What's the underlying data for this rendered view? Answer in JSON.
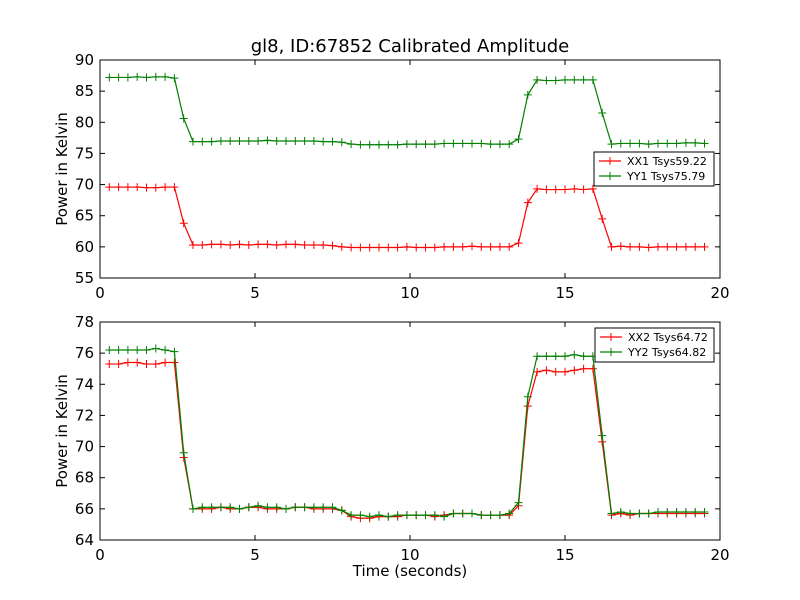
{
  "title": "gl8, ID:67852 Calibrated Amplitude",
  "chart_data": [
    {
      "type": "line",
      "title": "gl8, ID:67852 Calibrated Amplitude",
      "xlabel": "",
      "ylabel": "Power in Kelvin",
      "xlim": [
        0,
        20
      ],
      "ylim": [
        55,
        90
      ],
      "xticks": [
        0,
        5,
        10,
        15,
        20
      ],
      "yticks": [
        55,
        60,
        65,
        70,
        75,
        80,
        85,
        90
      ],
      "grid": false,
      "legend": "right",
      "x": [
        0.3,
        0.6,
        0.9,
        1.2,
        1.5,
        1.8,
        2.1,
        2.4,
        2.7,
        3.0,
        3.3,
        3.6,
        3.9,
        4.2,
        4.5,
        4.8,
        5.1,
        5.4,
        5.7,
        6.0,
        6.3,
        6.6,
        6.9,
        7.2,
        7.5,
        7.8,
        8.1,
        8.4,
        8.7,
        9.0,
        9.3,
        9.6,
        9.9,
        10.2,
        10.5,
        10.8,
        11.1,
        11.4,
        11.7,
        12.0,
        12.3,
        12.6,
        12.9,
        13.2,
        13.5,
        13.8,
        14.1,
        14.4,
        14.7,
        15.0,
        15.3,
        15.6,
        15.9,
        16.2,
        16.5,
        16.8,
        17.1,
        17.4,
        17.7,
        18.0,
        18.3,
        18.6,
        18.9,
        19.2,
        19.5
      ],
      "series": [
        {
          "name": "XX1 Tsys59.22",
          "color": "#ff0000",
          "values": [
            69.6,
            69.6,
            69.6,
            69.6,
            69.5,
            69.5,
            69.6,
            69.6,
            63.8,
            60.3,
            60.3,
            60.4,
            60.4,
            60.3,
            60.4,
            60.3,
            60.4,
            60.4,
            60.3,
            60.4,
            60.4,
            60.3,
            60.3,
            60.3,
            60.2,
            60.0,
            59.9,
            59.9,
            59.9,
            59.9,
            59.9,
            59.9,
            60.0,
            59.9,
            59.9,
            59.9,
            60.0,
            60.0,
            60.0,
            60.1,
            60.0,
            60.0,
            60.0,
            60.0,
            60.6,
            67.1,
            69.3,
            69.2,
            69.2,
            69.2,
            69.3,
            69.2,
            69.3,
            64.5,
            60.0,
            60.1,
            60.0,
            60.0,
            59.9,
            60.0,
            60.0,
            60.0,
            60.0,
            60.0,
            60.0
          ]
        },
        {
          "name": "YY1 Tsys75.79",
          "color": "#008000",
          "values": [
            87.2,
            87.2,
            87.2,
            87.3,
            87.2,
            87.3,
            87.3,
            87.1,
            80.6,
            76.9,
            76.9,
            76.9,
            77.0,
            77.0,
            77.0,
            77.0,
            77.0,
            77.1,
            77.0,
            77.0,
            77.0,
            77.0,
            77.0,
            76.9,
            76.9,
            76.8,
            76.5,
            76.4,
            76.4,
            76.4,
            76.4,
            76.4,
            76.5,
            76.5,
            76.5,
            76.5,
            76.6,
            76.6,
            76.6,
            76.6,
            76.6,
            76.5,
            76.5,
            76.5,
            77.3,
            84.4,
            86.8,
            86.7,
            86.7,
            86.8,
            86.8,
            86.8,
            86.8,
            81.5,
            76.5,
            76.6,
            76.6,
            76.6,
            76.5,
            76.6,
            76.6,
            76.6,
            76.7,
            76.7,
            76.6
          ]
        }
      ]
    },
    {
      "type": "line",
      "title": "",
      "xlabel": "Time (seconds)",
      "ylabel": "Power in Kelvin",
      "xlim": [
        0,
        20
      ],
      "ylim": [
        64,
        78
      ],
      "xticks": [
        0,
        5,
        10,
        15,
        20
      ],
      "yticks": [
        64,
        66,
        68,
        70,
        72,
        74,
        76,
        78
      ],
      "grid": false,
      "legend": "top-right",
      "x": [
        0.3,
        0.6,
        0.9,
        1.2,
        1.5,
        1.8,
        2.1,
        2.4,
        2.7,
        3.0,
        3.3,
        3.6,
        3.9,
        4.2,
        4.5,
        4.8,
        5.1,
        5.4,
        5.7,
        6.0,
        6.3,
        6.6,
        6.9,
        7.2,
        7.5,
        7.8,
        8.1,
        8.4,
        8.7,
        9.0,
        9.3,
        9.6,
        9.9,
        10.2,
        10.5,
        10.8,
        11.1,
        11.4,
        11.7,
        12.0,
        12.3,
        12.6,
        12.9,
        13.2,
        13.5,
        13.8,
        14.1,
        14.4,
        14.7,
        15.0,
        15.3,
        15.6,
        15.9,
        16.2,
        16.5,
        16.8,
        17.1,
        17.4,
        17.7,
        18.0,
        18.3,
        18.6,
        18.9,
        19.2,
        19.5
      ],
      "series": [
        {
          "name": "XX2 Tsys64.72",
          "color": "#ff0000",
          "values": [
            75.3,
            75.3,
            75.4,
            75.4,
            75.3,
            75.3,
            75.4,
            75.4,
            69.3,
            66.0,
            66.0,
            66.0,
            66.1,
            66.0,
            66.0,
            66.1,
            66.1,
            66.0,
            66.0,
            66.0,
            66.1,
            66.1,
            66.0,
            66.0,
            66.0,
            65.9,
            65.5,
            65.4,
            65.4,
            65.5,
            65.5,
            65.5,
            65.6,
            65.6,
            65.6,
            65.5,
            65.6,
            65.7,
            65.7,
            65.7,
            65.6,
            65.6,
            65.6,
            65.6,
            66.2,
            72.6,
            74.8,
            74.9,
            74.8,
            74.8,
            74.9,
            75.0,
            75.0,
            70.3,
            65.6,
            65.7,
            65.6,
            65.7,
            65.7,
            65.7,
            65.7,
            65.7,
            65.7,
            65.7,
            65.7
          ]
        },
        {
          "name": "YY2 Tsys64.82",
          "color": "#008000",
          "values": [
            76.2,
            76.2,
            76.2,
            76.2,
            76.2,
            76.3,
            76.2,
            76.1,
            69.6,
            66.0,
            66.1,
            66.1,
            66.1,
            66.1,
            66.0,
            66.1,
            66.2,
            66.1,
            66.1,
            66.0,
            66.1,
            66.1,
            66.1,
            66.1,
            66.1,
            65.9,
            65.6,
            65.6,
            65.5,
            65.6,
            65.5,
            65.6,
            65.6,
            65.6,
            65.6,
            65.6,
            65.5,
            65.7,
            65.7,
            65.7,
            65.6,
            65.6,
            65.6,
            65.7,
            66.4,
            73.2,
            75.8,
            75.8,
            75.8,
            75.8,
            75.9,
            75.8,
            75.8,
            70.7,
            65.7,
            65.8,
            65.7,
            65.7,
            65.7,
            65.8,
            65.8,
            65.8,
            65.8,
            65.8,
            65.8
          ]
        }
      ]
    }
  ]
}
